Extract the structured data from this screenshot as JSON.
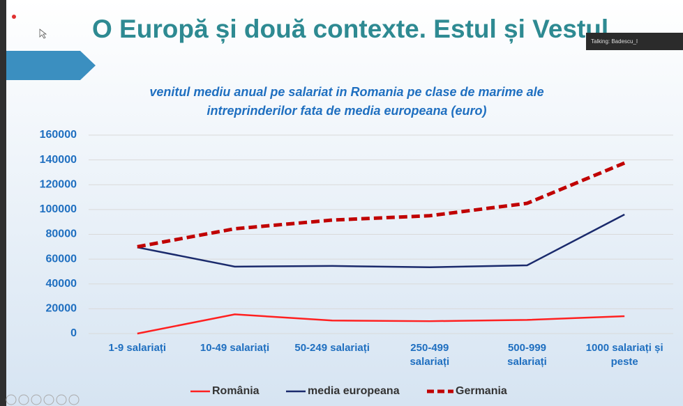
{
  "slide": {
    "title": "O Europă și două contexte. Estul și Vestul",
    "talking": "Talking: Badescu_I"
  },
  "chart_data": {
    "type": "line",
    "title": "venitul mediu anual pe salariat in Romania pe clase de marime ale\nintreprinderilor fata de media europeana (euro)",
    "categories": [
      "1-9 salariați",
      "10-49 salariați",
      "50-249 salariați",
      "250-499\nsalariați",
      "500-999\nsalariați",
      "1000 salariați și\npeste"
    ],
    "series": [
      {
        "name": "România",
        "color": "#ff2020",
        "dashed": false,
        "values": [
          0,
          15500,
          10500,
          10000,
          11000,
          14000
        ]
      },
      {
        "name": "media europeana",
        "color": "#1a2a6c",
        "dashed": false,
        "values": [
          69500,
          54000,
          54500,
          53500,
          55000,
          96000
        ]
      },
      {
        "name": "Germania",
        "color": "#c00000",
        "dashed": true,
        "values": [
          70000,
          84500,
          91500,
          95000,
          105000,
          137500
        ]
      }
    ],
    "ylim": [
      0,
      160000
    ],
    "yticks": [
      0,
      20000,
      40000,
      60000,
      80000,
      100000,
      120000,
      140000,
      160000
    ],
    "grid": true,
    "legend": "bottom"
  }
}
